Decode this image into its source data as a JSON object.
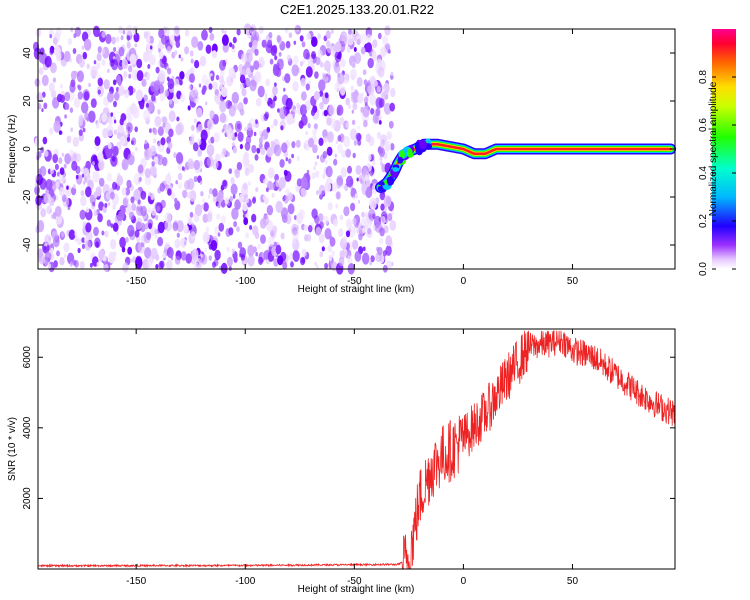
{
  "title": "C2E1.2025.133.20.01.R22",
  "chart_data": [
    {
      "type": "heatmap",
      "xlabel": "Height of straight line (km)",
      "ylabel": "Frequency (Hz)",
      "xlim": [
        -195,
        97
      ],
      "ylim": [
        -50,
        50
      ],
      "xticks": [
        -150,
        -100,
        -50,
        0,
        50
      ],
      "yticks": [
        -40,
        -20,
        0,
        20,
        40
      ],
      "noise_region_x": [
        -195,
        -35
      ],
      "signal_track": {
        "x": [
          -38,
          -35,
          -32,
          -30,
          -28,
          -25,
          -22,
          -18,
          -12,
          -6,
          0,
          5,
          10,
          15,
          30,
          60,
          95
        ],
        "y": [
          -16,
          -14,
          -10,
          -6,
          -3,
          -1,
          0,
          2,
          2,
          1,
          0,
          -2,
          -2,
          0,
          0,
          0,
          0
        ]
      },
      "colorbar": {
        "label": "Normalized spectral amplitude",
        "range": [
          0,
          1
        ],
        "ticks": [
          "0.0",
          "0.2",
          "0.4",
          "0.6",
          "0.8"
        ]
      }
    },
    {
      "type": "line",
      "xlabel": "Height of straight line (km)",
      "ylabel": "SNR (10 * v/v)",
      "xlim": [
        -195,
        97
      ],
      "ylim": [
        0,
        6800
      ],
      "xticks": [
        -150,
        -100,
        -50,
        0,
        50
      ],
      "yticks": [
        2000,
        4000,
        6000
      ],
      "color": "#ee2222",
      "envelope": {
        "x": [
          -195,
          -100,
          -30,
          -25,
          -20,
          -15,
          -10,
          -5,
          0,
          10,
          20,
          30,
          40,
          45,
          50,
          60,
          70,
          80,
          90,
          97
        ],
        "y": [
          80,
          90,
          120,
          250,
          2000,
          2800,
          3200,
          3400,
          3700,
          4400,
          5400,
          6300,
          6400,
          6500,
          6200,
          6000,
          5500,
          5000,
          4600,
          4400
        ]
      }
    }
  ]
}
